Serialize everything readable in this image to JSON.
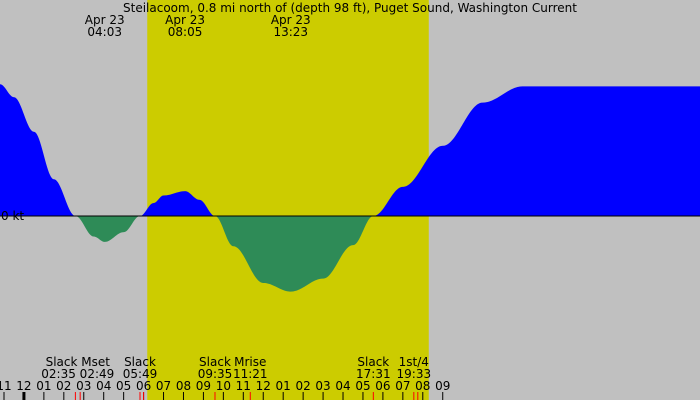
{
  "chart_data": {
    "type": "area",
    "title": "Steilacoom, 0.8 mi north of (depth 98 ft), Puget Sound, Washington Current",
    "y_zero_label": "0 kt",
    "colors": {
      "night_background": "#c0c0c0",
      "daylight": "#cccc00",
      "flood": "#0000ff",
      "ebb": "#2e8b57"
    },
    "daylight_window": {
      "start": "06:11",
      "end": "20:18"
    },
    "x_hours_range": [
      -1.2,
      33.9
    ],
    "ylim": [
      -1.3,
      2.0
    ],
    "current": {
      "x_hours": [
        -1.2,
        -0.5,
        0.5,
        1.5,
        2.58,
        3.5,
        4.05,
        5.0,
        5.82,
        6.5,
        7.0,
        8.08,
        8.8,
        9.58,
        10.5,
        12.0,
        13.38,
        15.0,
        16.5,
        17.52,
        19.0,
        21.0,
        23.0,
        25.0,
        27.0,
        29.0,
        31.0,
        33.0,
        33.9
      ],
      "knots": [
        1.22,
        1.1,
        0.78,
        0.34,
        0.0,
        -0.19,
        -0.24,
        -0.15,
        0.0,
        0.12,
        0.19,
        0.23,
        0.15,
        0.0,
        -0.28,
        -0.62,
        -0.7,
        -0.58,
        -0.27,
        0.0,
        0.27,
        0.65,
        1.05,
        1.2,
        1.2,
        1.2,
        1.2,
        1.2,
        1.2
      ]
    },
    "top_labels": [
      {
        "date": "Apr 23",
        "time": "04:03",
        "hour": 4.05
      },
      {
        "date": "Apr 23",
        "time": "08:05",
        "hour": 8.08
      },
      {
        "date": "Apr 23",
        "time": "13:23",
        "hour": 13.38
      }
    ],
    "events": [
      {
        "label": "Slack Mset",
        "time": "02:35 02:49",
        "hour": 2.7
      },
      {
        "label": "Slack",
        "time": "05:49",
        "hour": 5.82
      },
      {
        "label": "Slack",
        "time": "09:35",
        "hour": 9.58
      },
      {
        "label": "Mrise",
        "time": "11:21",
        "hour": 11.35
      },
      {
        "label": "Slack",
        "time": "17:31",
        "hour": 17.52
      },
      {
        "label": "1st/4",
        "time": "19:33",
        "hour": 19.55
      }
    ],
    "event_markers": [
      {
        "hour": 2.58,
        "color": "#ff0000"
      },
      {
        "hour": 2.82,
        "color": "#ff0000"
      },
      {
        "hour": 5.82,
        "color": "#ff0000"
      },
      {
        "hour": 6.0,
        "color": "#ff0000"
      },
      {
        "hour": 9.58,
        "color": "#ff0000"
      },
      {
        "hour": 11.35,
        "color": "#ff0000"
      },
      {
        "hour": 17.52,
        "color": "#ff0000"
      },
      {
        "hour": 19.55,
        "color": "#ff0000"
      },
      {
        "hour": 19.75,
        "color": "#ff0000"
      },
      {
        "hour": 0.0,
        "color": "#000000",
        "major": true
      }
    ],
    "x_ticks": [
      {
        "label": "11",
        "hour": -1
      },
      {
        "label": "12",
        "hour": 0
      },
      {
        "label": "01",
        "hour": 1
      },
      {
        "label": "02",
        "hour": 2
      },
      {
        "label": "03",
        "hour": 3
      },
      {
        "label": "04",
        "hour": 4
      },
      {
        "label": "05",
        "hour": 5
      },
      {
        "label": "06",
        "hour": 6
      },
      {
        "label": "07",
        "hour": 7
      },
      {
        "label": "08",
        "hour": 8
      },
      {
        "label": "09",
        "hour": 9
      },
      {
        "label": "10",
        "hour": 10
      },
      {
        "label": "11",
        "hour": 11
      },
      {
        "label": "12",
        "hour": 12
      },
      {
        "label": "01",
        "hour": 13
      },
      {
        "label": "02",
        "hour": 14
      },
      {
        "label": "03",
        "hour": 15
      },
      {
        "label": "04",
        "hour": 16
      },
      {
        "label": "05",
        "hour": 17
      },
      {
        "label": "06",
        "hour": 18
      },
      {
        "label": "07",
        "hour": 19
      },
      {
        "label": "08",
        "hour": 20
      },
      {
        "label": "09",
        "hour": 21
      }
    ]
  }
}
